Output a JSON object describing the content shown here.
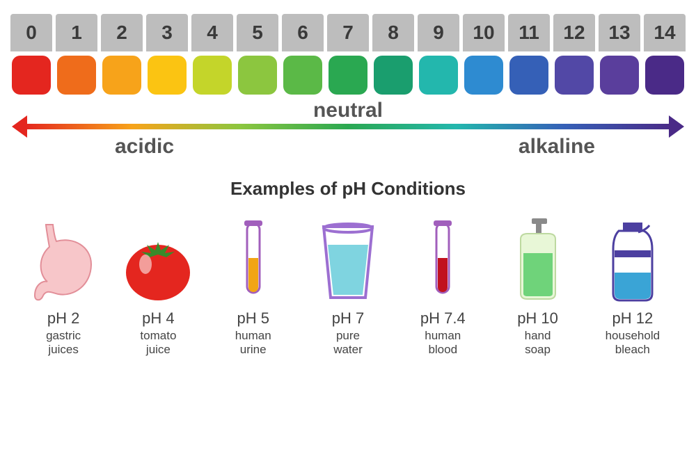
{
  "scale": {
    "type": "color-scale",
    "num_box_bg": "#bdbdbd",
    "num_text_color": "#3a3a3a",
    "num_fontsize": 28,
    "swatch_radius_px": 12,
    "items": [
      {
        "n": "0",
        "color": "#e4261f"
      },
      {
        "n": "1",
        "color": "#ef6c1b"
      },
      {
        "n": "2",
        "color": "#f7a31a"
      },
      {
        "n": "3",
        "color": "#fbc412"
      },
      {
        "n": "4",
        "color": "#c4d52a"
      },
      {
        "n": "5",
        "color": "#8cc63f"
      },
      {
        "n": "6",
        "color": "#5bb947"
      },
      {
        "n": "7",
        "color": "#2aa851"
      },
      {
        "n": "8",
        "color": "#1a9e6e"
      },
      {
        "n": "9",
        "color": "#23b7ad"
      },
      {
        "n": "10",
        "color": "#2e8bd1"
      },
      {
        "n": "11",
        "color": "#3560b7"
      },
      {
        "n": "12",
        "color": "#5248a6"
      },
      {
        "n": "13",
        "color": "#5a3e9c"
      },
      {
        "n": "14",
        "color": "#4a2a87"
      }
    ]
  },
  "arrow": {
    "gradient_stops": [
      "#e4261f",
      "#f7a31a",
      "#8cc63f",
      "#2aa851",
      "#23b7ad",
      "#3560b7",
      "#4a2a87"
    ],
    "left_head_color": "#e4261f",
    "right_head_color": "#4a2a87",
    "labels": {
      "left": "acidic",
      "center": "neutral",
      "right": "alkaline"
    },
    "label_fontsize": 30,
    "label_color": "#555555"
  },
  "examples_title": {
    "text": "Examples of pH Conditions",
    "fontsize": 26,
    "color": "#333333"
  },
  "examples": {
    "ph_fontsize": 22,
    "name_fontsize": 17,
    "items": [
      {
        "ph": "pH 2",
        "name": "gastric\njuices",
        "icon": "stomach"
      },
      {
        "ph": "pH 4",
        "name": "tomato\njuice",
        "icon": "tomato"
      },
      {
        "ph": "pH 5",
        "name": "human\nurine",
        "icon": "testtube-yellow"
      },
      {
        "ph": "pH 7",
        "name": "pure\nwater",
        "icon": "glass-water"
      },
      {
        "ph": "pH 7.4",
        "name": "human\nblood",
        "icon": "testtube-red"
      },
      {
        "ph": "pH 10",
        "name": "hand\nsoap",
        "icon": "soap"
      },
      {
        "ph": "pH 12",
        "name": "household\nbleach",
        "icon": "bleach"
      }
    ]
  },
  "icons": {
    "stomach": {
      "fill": "#f7c6c9",
      "stroke": "#e28e98"
    },
    "tomato": {
      "body": "#e4261f",
      "leaf": "#3a8a2a",
      "shine": "#ffffff"
    },
    "testtube-yellow": {
      "liquid": "#f2a515",
      "outline": "#a15fbc"
    },
    "glass-water": {
      "glass": "#9c6fd1",
      "water": "#7fd4e0"
    },
    "testtube-red": {
      "liquid": "#c1121f",
      "outline": "#a15fbc"
    },
    "soap": {
      "bottle": "#e8f7d7",
      "soap": "#6fd37a",
      "pump": "#8a8a8a"
    },
    "bleach": {
      "bottle": "#ffffff",
      "cap": "#4c3fa0",
      "liquid": "#3aa4d6",
      "outline": "#4c3fa0"
    }
  }
}
